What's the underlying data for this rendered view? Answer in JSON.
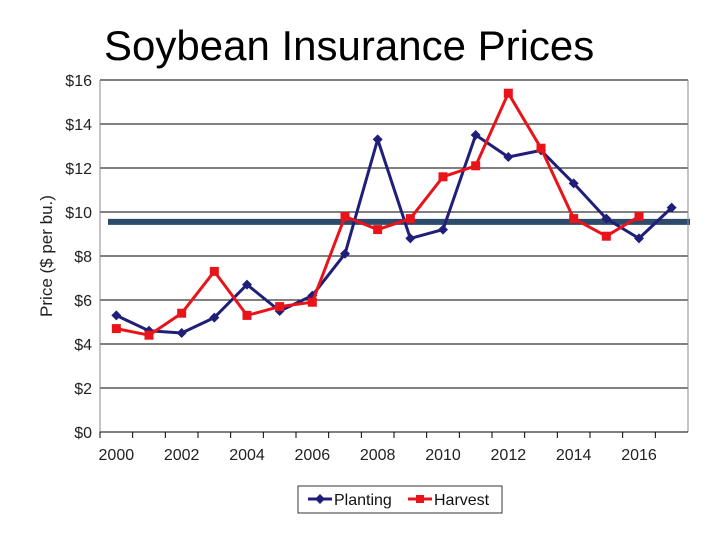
{
  "title": "Soybean Insurance Prices",
  "chart_data": {
    "type": "line",
    "title": "Soybean Insurance Prices",
    "xlabel": "",
    "ylabel": "Price ($ per bu.)",
    "ylim": [
      0,
      16
    ],
    "ytick_labels": [
      "$0",
      "$2",
      "$4",
      "$6",
      "$8",
      "$10",
      "$12",
      "$14",
      "$16"
    ],
    "yticks": [
      0,
      2,
      4,
      6,
      8,
      10,
      12,
      14,
      16
    ],
    "xtick_labels": [
      "2000",
      "2002",
      "2004",
      "2006",
      "2008",
      "2010",
      "2012",
      "2014",
      "2016"
    ],
    "xticks": [
      2000,
      2002,
      2004,
      2006,
      2008,
      2010,
      2012,
      2014,
      2016
    ],
    "xlim": [
      1999.5,
      2017.5
    ],
    "grid": "horizontal",
    "legend": "bottom",
    "reference_line": {
      "y": 9.55,
      "color": "#2e4a6b"
    },
    "series": [
      {
        "name": "Planting",
        "color": "#1f1f7a",
        "marker": "diamond",
        "x": [
          2000,
          2001,
          2002,
          2003,
          2004,
          2005,
          2006,
          2007,
          2008,
          2009,
          2010,
          2011,
          2012,
          2013,
          2014,
          2015,
          2016,
          2017
        ],
        "values": [
          5.3,
          4.6,
          4.5,
          5.2,
          6.7,
          5.5,
          6.2,
          8.1,
          13.3,
          8.8,
          9.2,
          13.5,
          12.5,
          12.8,
          11.3,
          9.7,
          8.8,
          10.2
        ]
      },
      {
        "name": "Harvest",
        "color": "#e8141a",
        "marker": "square",
        "x": [
          2000,
          2001,
          2002,
          2003,
          2004,
          2005,
          2006,
          2007,
          2008,
          2009,
          2010,
          2011,
          2012,
          2013,
          2014,
          2015,
          2016
        ],
        "values": [
          4.7,
          4.4,
          5.4,
          7.3,
          5.3,
          5.7,
          5.9,
          9.8,
          9.2,
          9.7,
          11.6,
          12.1,
          15.4,
          12.9,
          9.7,
          8.9,
          9.8
        ]
      }
    ]
  }
}
